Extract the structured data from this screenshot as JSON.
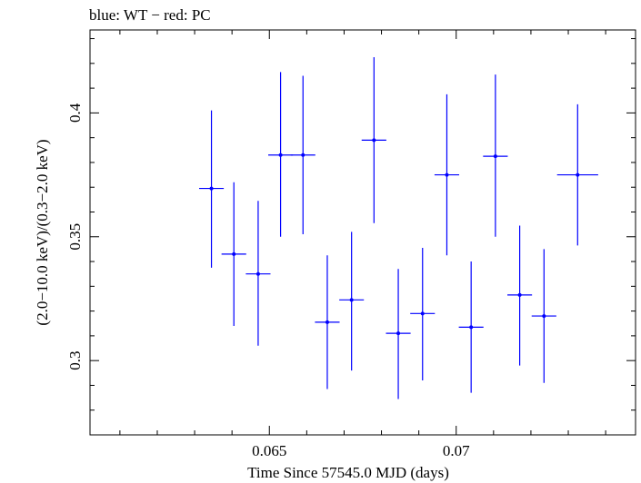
{
  "chart_data": {
    "type": "scatter",
    "title": "blue: WT − red: PC",
    "xlabel": "Time Since 57545.0 MJD (days)",
    "ylabel": "(2.0−10.0 keV)/(0.3−2.0 keV)",
    "xlim": [
      0.0602,
      0.0748
    ],
    "ylim": [
      0.27,
      0.4335
    ],
    "x_ticks": [
      0.065,
      0.07
    ],
    "x_tick_labels": [
      "0.065",
      "0.07"
    ],
    "y_ticks": [
      0.3,
      0.35,
      0.4
    ],
    "y_tick_labels": [
      "0.3",
      "0.35",
      "0.4"
    ],
    "grid": false,
    "series": [
      {
        "color": "#0000ff",
        "points": [
          {
            "x": 0.06345,
            "xerr": 0.00033,
            "y": 0.3695,
            "yerr_low": 0.032,
            "yerr_high": 0.0315
          },
          {
            "x": 0.06405,
            "xerr": 0.00033,
            "y": 0.343,
            "yerr_low": 0.029,
            "yerr_high": 0.029
          },
          {
            "x": 0.0647,
            "xerr": 0.00033,
            "y": 0.335,
            "yerr_low": 0.029,
            "yerr_high": 0.0295
          },
          {
            "x": 0.0653,
            "xerr": 0.00033,
            "y": 0.383,
            "yerr_low": 0.033,
            "yerr_high": 0.0335
          },
          {
            "x": 0.0659,
            "xerr": 0.00033,
            "y": 0.383,
            "yerr_low": 0.032,
            "yerr_high": 0.032
          },
          {
            "x": 0.06655,
            "xerr": 0.00033,
            "y": 0.3155,
            "yerr_low": 0.027,
            "yerr_high": 0.027
          },
          {
            "x": 0.0672,
            "xerr": 0.00033,
            "y": 0.3245,
            "yerr_low": 0.0285,
            "yerr_high": 0.0275
          },
          {
            "x": 0.0678,
            "xerr": 0.00033,
            "y": 0.389,
            "yerr_low": 0.0335,
            "yerr_high": 0.0335
          },
          {
            "x": 0.06845,
            "xerr": 0.00033,
            "y": 0.311,
            "yerr_low": 0.0265,
            "yerr_high": 0.026
          },
          {
            "x": 0.0691,
            "xerr": 0.00033,
            "y": 0.319,
            "yerr_low": 0.027,
            "yerr_high": 0.0265
          },
          {
            "x": 0.06975,
            "xerr": 0.00033,
            "y": 0.375,
            "yerr_low": 0.0325,
            "yerr_high": 0.0325
          },
          {
            "x": 0.0704,
            "xerr": 0.00033,
            "y": 0.3135,
            "yerr_low": 0.0265,
            "yerr_high": 0.0265
          },
          {
            "x": 0.07105,
            "xerr": 0.00033,
            "y": 0.3825,
            "yerr_low": 0.0325,
            "yerr_high": 0.033
          },
          {
            "x": 0.0717,
            "xerr": 0.00033,
            "y": 0.3265,
            "yerr_low": 0.0285,
            "yerr_high": 0.028
          },
          {
            "x": 0.07235,
            "xerr": 0.00033,
            "y": 0.318,
            "yerr_low": 0.027,
            "yerr_high": 0.027
          },
          {
            "x": 0.07325,
            "xerr": 0.00055,
            "y": 0.375,
            "yerr_low": 0.0285,
            "yerr_high": 0.0285
          }
        ]
      }
    ]
  }
}
